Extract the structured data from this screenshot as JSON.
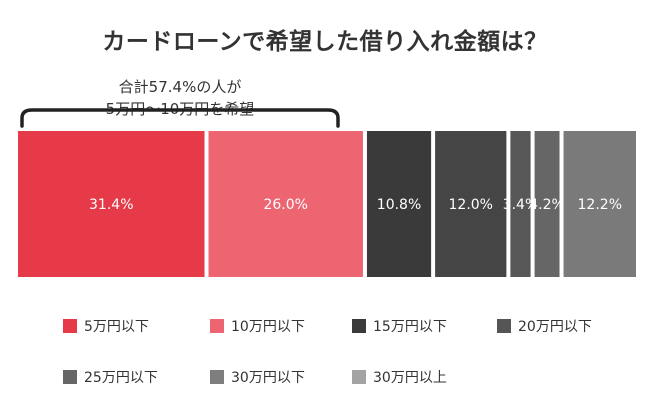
{
  "title": "カードローンで希望した借り入れ金額は？",
  "note": {
    "line1": "合計57.4%の人が",
    "line2": "5万円〜10万円を希望"
  },
  "colors": [
    "#e63a49",
    "#ee6572",
    "#3a3a3a",
    "#454545",
    "#575757",
    "#666666",
    "#7a7a7a"
  ],
  "legend_colors": [
    "#e63a49",
    "#ee6572",
    "#3a3a3a",
    "#555555",
    "#666666",
    "#7e7e7e",
    "#a3a3a3"
  ],
  "chart_data": {
    "type": "bar",
    "orientation": "horizontal-stacked",
    "categories": [
      "5万円以下",
      "10万円以下",
      "15万円以下",
      "20万円以下",
      "25万円以下",
      "30万円以下",
      "30万円以上"
    ],
    "values": [
      31.4,
      26.0,
      10.8,
      12.0,
      3.4,
      4.2,
      12.2
    ],
    "labels": [
      "31.4%",
      "26.0%",
      "10.8%",
      "12.0%",
      "3.4%",
      "4.2%",
      "12.2%"
    ],
    "title": "カードローンで希望した借り入れ金額は？",
    "annotation": "合計57.4%の人が 5万円〜10万円を希望",
    "legend_position": "bottom"
  }
}
